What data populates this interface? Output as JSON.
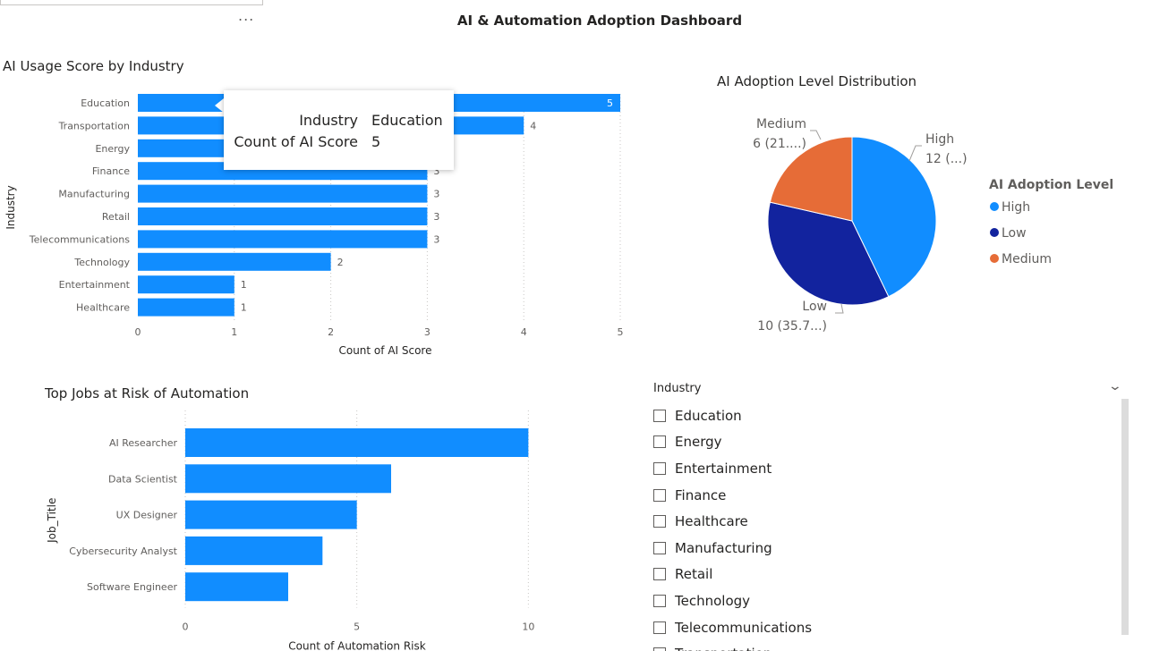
{
  "dashboard": {
    "title": "AI & Automation Adoption Dashboard",
    "more_options": "..."
  },
  "chart_data": [
    {
      "type": "bar",
      "title": "AI Usage Score by Industry",
      "xlabel": "Count of AI Score",
      "ylabel": "Industry",
      "orientation": "horizontal",
      "categories": [
        "Education",
        "Transportation",
        "Energy",
        "Finance",
        "Manufacturing",
        "Retail",
        "Telecommunications",
        "Technology",
        "Entertainment",
        "Healthcare"
      ],
      "values": [
        5,
        4,
        3,
        3,
        3,
        3,
        3,
        2,
        1,
        1
      ],
      "xlim": [
        0,
        5
      ],
      "xticks": [
        "0",
        "1",
        "2",
        "3",
        "4",
        "5"
      ],
      "grid": true,
      "color": "#118DFF"
    },
    {
      "type": "pie",
      "title": "AI Adoption Level Distribution",
      "legend_title": "AI Adoption Level",
      "legend_position": "right",
      "slices": [
        {
          "name": "High",
          "value": 12,
          "color": "#118DFF",
          "value_label": "12 (...)"
        },
        {
          "name": "Low",
          "value": 10,
          "color": "#12239E",
          "value_label": "10 (35.7...)"
        },
        {
          "name": "Medium",
          "value": 6,
          "color": "#E66C37",
          "value_label": "6 (21....)"
        }
      ]
    },
    {
      "type": "bar",
      "title": "Top Jobs at Risk of Automation",
      "xlabel": "Count of Automation Risk",
      "ylabel": "Job_Title",
      "orientation": "horizontal",
      "categories": [
        "AI Researcher",
        "Data Scientist",
        "UX Designer",
        "Cybersecurity Analyst",
        "Software Engineer"
      ],
      "values": [
        10,
        6,
        5,
        4,
        3
      ],
      "xlim": [
        0,
        12
      ],
      "xticks": [
        "0",
        "5",
        "10"
      ],
      "grid": true,
      "color": "#118DFF"
    }
  ],
  "tooltip": {
    "rows": [
      {
        "key": "Industry",
        "value": "Education"
      },
      {
        "key": "Count of AI Score",
        "value": "5"
      }
    ]
  },
  "slicer": {
    "header": "Industry",
    "items": [
      "Education",
      "Energy",
      "Entertainment",
      "Finance",
      "Healthcare",
      "Manufacturing",
      "Retail",
      "Technology",
      "Telecommunications",
      "Transportation"
    ]
  }
}
